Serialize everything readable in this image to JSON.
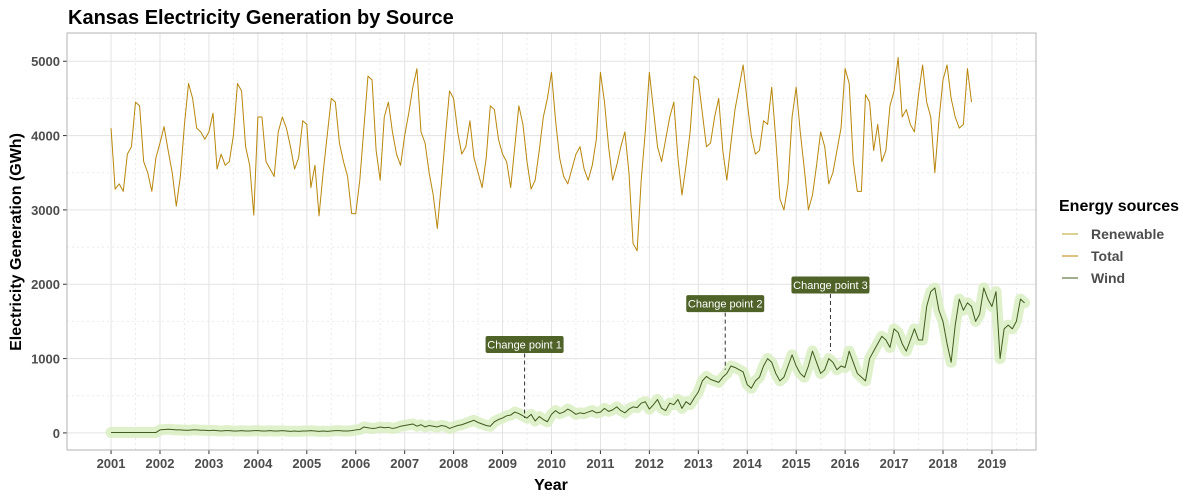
{
  "chart_data": {
    "type": "line",
    "title": "Kansas Electricity Generation by Source",
    "xlabel": "Year",
    "ylabel": "Electricity Generation (GWh)",
    "xlim": [
      2000.1,
      2019.9
    ],
    "ylim": [
      -230,
      5380
    ],
    "x_ticks": [
      "2001",
      "2002",
      "2003",
      "2004",
      "2005",
      "2006",
      "2007",
      "2008",
      "2009",
      "2010",
      "2011",
      "2012",
      "2013",
      "2014",
      "2015",
      "2016",
      "2017",
      "2018",
      "2019"
    ],
    "y_ticks": [
      0,
      1000,
      2000,
      3000,
      4000,
      5000
    ],
    "grid": true,
    "legend": {
      "title": "Energy sources",
      "position": "right",
      "entries": [
        {
          "name": "Renewable",
          "color": "#b8a02a"
        },
        {
          "name": "Total",
          "color": "#b8860b"
        },
        {
          "name": "Wind",
          "color": "#3f5a1c"
        }
      ]
    },
    "colors": {
      "total_line": "#b8860b",
      "wind_line": "#3f5a1c",
      "wind_band": "#d9efc2",
      "annotation_fill": "#4f6228"
    },
    "series": [
      {
        "name": "Total",
        "x_start": 2001,
        "x_step": 0.08333,
        "values": [
          4100,
          3280,
          3350,
          3250,
          3750,
          3850,
          4450,
          4400,
          3650,
          3500,
          3250,
          3700,
          3900,
          4120,
          3800,
          3500,
          3050,
          3450,
          4150,
          4700,
          4500,
          4100,
          4050,
          3950,
          4050,
          4300,
          3550,
          3750,
          3600,
          3650,
          4000,
          4700,
          4600,
          3850,
          3600,
          2930,
          4250,
          4250,
          3650,
          3550,
          3450,
          4050,
          4250,
          4100,
          3850,
          3550,
          3700,
          4200,
          4150,
          3300,
          3600,
          2920,
          3500,
          4000,
          4500,
          4450,
          3900,
          3650,
          3450,
          2950,
          2950,
          3400,
          4100,
          4800,
          4750,
          3800,
          3400,
          4250,
          4450,
          4050,
          3750,
          3600,
          4000,
          4300,
          4650,
          4900,
          4050,
          3900,
          3500,
          3200,
          2750,
          3350,
          4000,
          4600,
          4500,
          4050,
          3750,
          3850,
          4200,
          3700,
          3500,
          3300,
          3700,
          4400,
          4350,
          3950,
          3750,
          3650,
          3300,
          3850,
          4400,
          4150,
          3650,
          3280,
          3400,
          3800,
          4250,
          4500,
          4850,
          4200,
          3700,
          3450,
          3350,
          3550,
          3750,
          3850,
          3550,
          3400,
          3600,
          3950,
          4850,
          4450,
          3850,
          3400,
          3600,
          3850,
          4050,
          3500,
          2550,
          2450,
          3400,
          4050,
          4850,
          4350,
          3850,
          3650,
          3950,
          4250,
          4450,
          3700,
          3200,
          3600,
          4050,
          4800,
          4750,
          4300,
          3850,
          3900,
          4250,
          4500,
          3800,
          3400,
          3900,
          4350,
          4650,
          4950,
          4450,
          4000,
          3750,
          3800,
          4200,
          4150,
          4650,
          3950,
          3150,
          3000,
          3350,
          4250,
          4650,
          4050,
          3550,
          3000,
          3200,
          3600,
          4050,
          3850,
          3350,
          3500,
          3800,
          4100,
          4900,
          4700,
          3650,
          3250,
          3250,
          4550,
          4450,
          3800,
          4150,
          3650,
          3800,
          4400,
          4600,
          5050,
          4250,
          4350,
          4150,
          4050,
          4550,
          4950,
          4450,
          4250,
          3500,
          4200,
          4750,
          4950,
          4500,
          4250,
          4100,
          4150,
          4900,
          4450
        ]
      },
      {
        "name": "Wind",
        "x_start": 2001,
        "x_step": 0.08333,
        "values": [
          5,
          5,
          5,
          5,
          5,
          5,
          5,
          5,
          5,
          5,
          5,
          5,
          40,
          45,
          50,
          45,
          40,
          40,
          35,
          35,
          40,
          40,
          35,
          35,
          30,
          35,
          30,
          25,
          30,
          30,
          25,
          25,
          30,
          25,
          25,
          30,
          30,
          25,
          25,
          30,
          25,
          25,
          30,
          25,
          20,
          25,
          20,
          25,
          25,
          30,
          25,
          20,
          25,
          20,
          25,
          30,
          30,
          25,
          25,
          30,
          40,
          45,
          80,
          70,
          60,
          65,
          80,
          70,
          75,
          60,
          70,
          90,
          100,
          110,
          120,
          90,
          110,
          80,
          100,
          90,
          80,
          100,
          90,
          60,
          80,
          100,
          110,
          130,
          150,
          170,
          140,
          120,
          100,
          90,
          150,
          180,
          200,
          230,
          240,
          280,
          260,
          230,
          200,
          250,
          160,
          220,
          180,
          150,
          250,
          300,
          260,
          280,
          320,
          290,
          250,
          270,
          260,
          280,
          300,
          270,
          280,
          330,
          290,
          310,
          350,
          300,
          270,
          320,
          350,
          340,
          400,
          420,
          320,
          380,
          450,
          330,
          300,
          400,
          380,
          450,
          330,
          420,
          380,
          470,
          550,
          700,
          760,
          720,
          700,
          680,
          750,
          800,
          900,
          880,
          850,
          820,
          650,
          600,
          700,
          750,
          900,
          1000,
          950,
          800,
          700,
          750,
          900,
          1050,
          900,
          800,
          750,
          900,
          1100,
          950,
          800,
          850,
          1000,
          950,
          850,
          900,
          880,
          1100,
          950,
          800,
          750,
          700,
          1000,
          1100,
          1200,
          1300,
          1250,
          1150,
          1400,
          1350,
          1200,
          1100,
          1250,
          1400,
          1250,
          1250,
          1700,
          1900,
          1950,
          1650,
          1500,
          1200,
          950,
          1450,
          1800,
          1650,
          1750,
          1700,
          1500,
          1600,
          1950,
          1800,
          1700,
          1900,
          1000,
          1400,
          1450,
          1400,
          1500,
          1800,
          1750
        ]
      }
    ],
    "annotations": [
      {
        "label": "Change point 1",
        "x": 2009.45,
        "y": 200,
        "label_y": 1190
      },
      {
        "label": "Change point 2",
        "x": 2013.55,
        "y": 850,
        "label_y": 1740
      },
      {
        "label": "Change point 3",
        "x": 2015.7,
        "y": 1100,
        "label_y": 1990
      }
    ]
  }
}
